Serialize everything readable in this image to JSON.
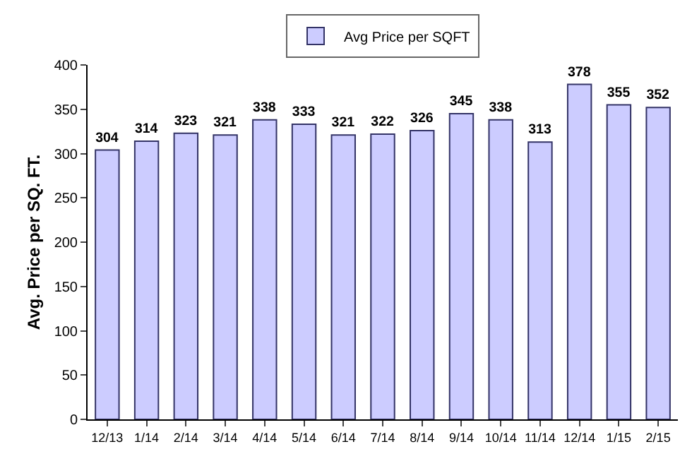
{
  "chart_data": {
    "type": "bar",
    "ylabel": "Avg. Price per SQ. FT.",
    "categories": [
      "12/13",
      "1/14",
      "2/14",
      "3/14",
      "4/14",
      "5/14",
      "6/14",
      "7/14",
      "8/14",
      "9/14",
      "10/14",
      "11/14",
      "12/14",
      "1/15",
      "2/15"
    ],
    "series": [
      {
        "name": "Avg Price per SQFT",
        "color": "#ccccff",
        "values": [
          304,
          314,
          323,
          321,
          338,
          333,
          321,
          322,
          326,
          345,
          338,
          313,
          378,
          355,
          352
        ]
      }
    ],
    "ylim": [
      0,
      400
    ],
    "yticks": [
      0,
      50,
      100,
      150,
      200,
      250,
      300,
      350,
      400
    ],
    "data_labels": true,
    "legend": "top",
    "grid": false
  }
}
